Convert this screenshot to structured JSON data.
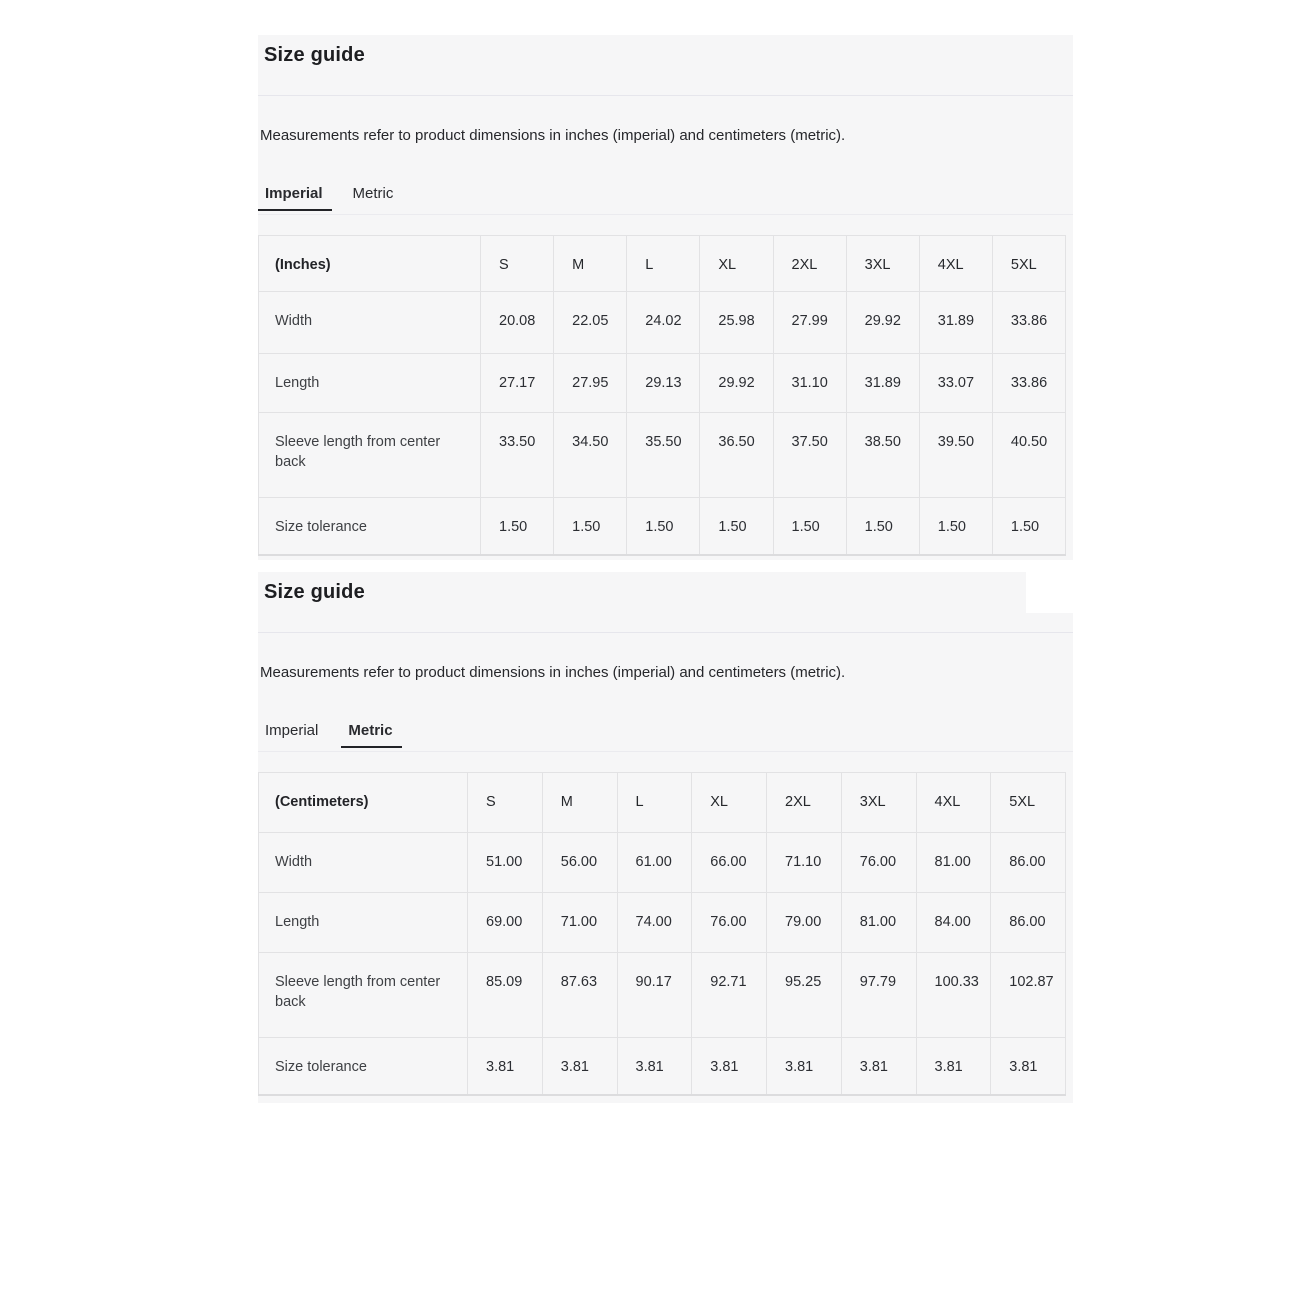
{
  "colors": {
    "section_background": "#f6f6f7",
    "divider": "#e6e6ec",
    "table_border": "#e2e2e4",
    "active_tab_underline": "#222327",
    "title_text": "#1d1e21"
  },
  "sections": [
    {
      "title": "Size guide",
      "description": "Measurements refer to product dimensions in inches (imperial) and centimeters (metric).",
      "tabs": [
        {
          "label": "Imperial",
          "active": true
        },
        {
          "label": "Metric",
          "active": false
        }
      ],
      "table": {
        "unit_label": "(Inches)",
        "columns": [
          "S",
          "M",
          "L",
          "XL",
          "2XL",
          "3XL",
          "4XL",
          "5XL"
        ],
        "rows": [
          {
            "label": "Width",
            "values": [
              "20.08",
              "22.05",
              "24.02",
              "25.98",
              "27.99",
              "29.92",
              "31.89",
              "33.86"
            ]
          },
          {
            "label": "Length",
            "values": [
              "27.17",
              "27.95",
              "29.13",
              "29.92",
              "31.10",
              "31.89",
              "33.07",
              "33.86"
            ]
          },
          {
            "label": "Sleeve length from center back",
            "values": [
              "33.50",
              "34.50",
              "35.50",
              "36.50",
              "37.50",
              "38.50",
              "39.50",
              "40.50"
            ]
          },
          {
            "label": "Size tolerance",
            "values": [
              "1.50",
              "1.50",
              "1.50",
              "1.50",
              "1.50",
              "1.50",
              "1.50",
              "1.50"
            ]
          }
        ]
      }
    },
    {
      "title": "Size guide",
      "description": "Measurements refer to product dimensions in inches (imperial) and centimeters (metric).",
      "tabs": [
        {
          "label": "Imperial",
          "active": false
        },
        {
          "label": "Metric",
          "active": true
        }
      ],
      "table": {
        "unit_label": "(Centimeters)",
        "columns": [
          "S",
          "M",
          "L",
          "XL",
          "2XL",
          "3XL",
          "4XL",
          "5XL"
        ],
        "rows": [
          {
            "label": "Width",
            "values": [
              "51.00",
              "56.00",
              "61.00",
              "66.00",
              "71.10",
              "76.00",
              "81.00",
              "86.00"
            ]
          },
          {
            "label": "Length",
            "values": [
              "69.00",
              "71.00",
              "74.00",
              "76.00",
              "79.00",
              "81.00",
              "84.00",
              "86.00"
            ]
          },
          {
            "label": "Sleeve length from center back",
            "values": [
              "85.09",
              "87.63",
              "90.17",
              "92.71",
              "95.25",
              "97.79",
              "100.33",
              "102.87"
            ]
          },
          {
            "label": "Size tolerance",
            "values": [
              "3.81",
              "3.81",
              "3.81",
              "3.81",
              "3.81",
              "3.81",
              "3.81",
              "3.81"
            ]
          }
        ]
      }
    }
  ]
}
